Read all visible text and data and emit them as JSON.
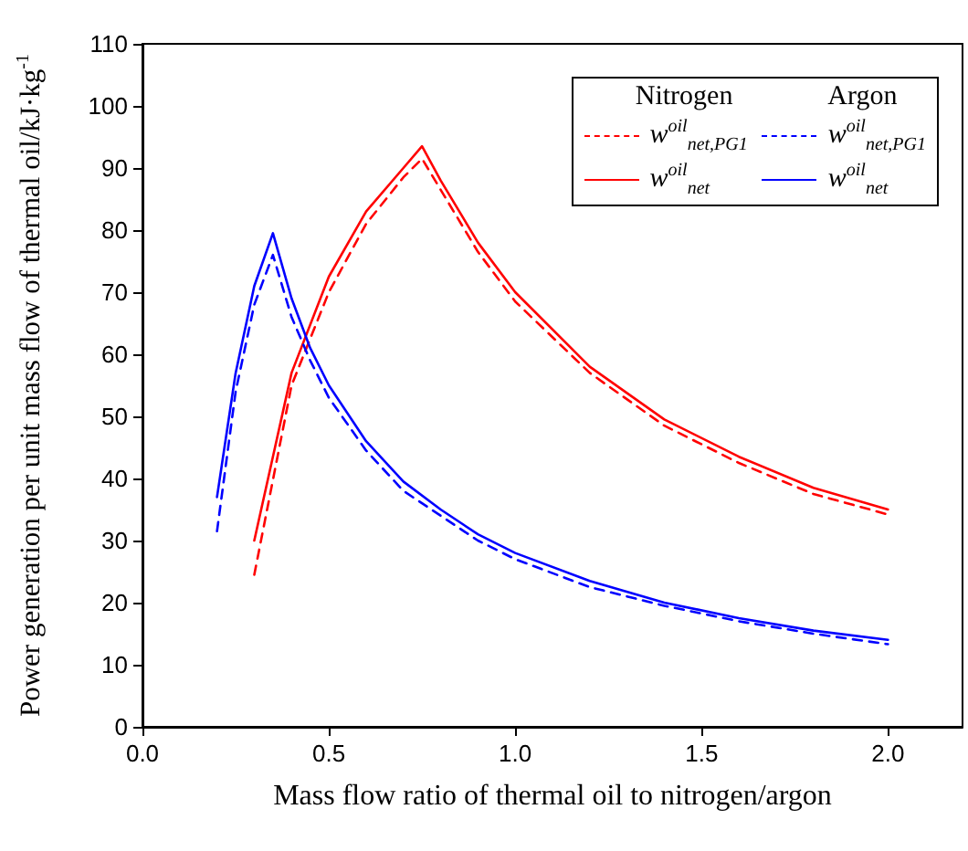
{
  "chart_data": {
    "type": "line",
    "xlabel": "Mass flow ratio of thermal oil to nitrogen/argon",
    "ylabel": "Power generation per unit mass flow of thermal oil/kJ·kg$^{-1}$",
    "xlim": [
      0,
      2.2
    ],
    "xticks": [
      {
        "value": 0,
        "label": "0.0"
      },
      {
        "value": 0.5,
        "label": "0.5"
      },
      {
        "value": 1,
        "label": "1.0"
      },
      {
        "value": 1.5,
        "label": "1.5"
      },
      {
        "value": 2,
        "label": "2.0"
      }
    ],
    "ylim": [
      0,
      110
    ],
    "yticks": [
      0,
      10,
      20,
      30,
      40,
      50,
      60,
      70,
      80,
      90,
      100,
      110
    ],
    "grid": false,
    "legend": "top right",
    "marker": "none",
    "annotations": [
      "Nitrogen",
      "Argon"
    ],
    "series": [
      {
        "name": "w$^{oil}$$_{net,PG1}$",
        "color": "#ff0000",
        "line_style": "dashed",
        "x": [
          0.3,
          0.4,
          0.5,
          0.6,
          0.7,
          0.75,
          0.8,
          0.9,
          1.0,
          1.2,
          1.4,
          1.6,
          1.8,
          2.0
        ],
        "values": [
          24.5,
          55,
          70,
          81,
          88.5,
          91.5,
          86.5,
          76.5,
          68.5,
          57,
          48.5,
          42.5,
          37.5,
          34.2
        ]
      },
      {
        "name": "w$^{oil}$$_{net}$",
        "color": "#ff0000",
        "line_style": "solid",
        "x": [
          0.3,
          0.4,
          0.5,
          0.6,
          0.7,
          0.75,
          0.8,
          0.9,
          1.0,
          1.2,
          1.4,
          1.6,
          1.8,
          2.0
        ],
        "values": [
          30,
          57,
          72.5,
          83,
          90,
          93.5,
          88,
          78,
          70,
          58,
          49.5,
          43.5,
          38.5,
          35
        ]
      },
      {
        "name": "w$^{oil}$$_{net,PG1}$",
        "color": "#0000ff",
        "line_style": "dashed",
        "x": [
          0.2,
          0.25,
          0.3,
          0.35,
          0.4,
          0.45,
          0.5,
          0.6,
          0.7,
          0.8,
          0.9,
          1.0,
          1.2,
          1.4,
          1.6,
          1.8,
          2.0
        ],
        "values": [
          31.5,
          54,
          68,
          76,
          66,
          59,
          53,
          44.5,
          38,
          34,
          30,
          27,
          22.5,
          19.5,
          17,
          15,
          13.3
        ]
      },
      {
        "name": "w$^{oil}$$_{net}$",
        "color": "#0000ff",
        "line_style": "solid",
        "x": [
          0.2,
          0.25,
          0.3,
          0.35,
          0.4,
          0.45,
          0.5,
          0.6,
          0.7,
          0.8,
          0.9,
          1.0,
          1.2,
          1.4,
          1.6,
          1.8,
          2.0
        ],
        "values": [
          37,
          57,
          71,
          79.5,
          69,
          61,
          55,
          46,
          39.5,
          35,
          31,
          28,
          23.5,
          20,
          17.5,
          15.5,
          14
        ]
      }
    ]
  }
}
